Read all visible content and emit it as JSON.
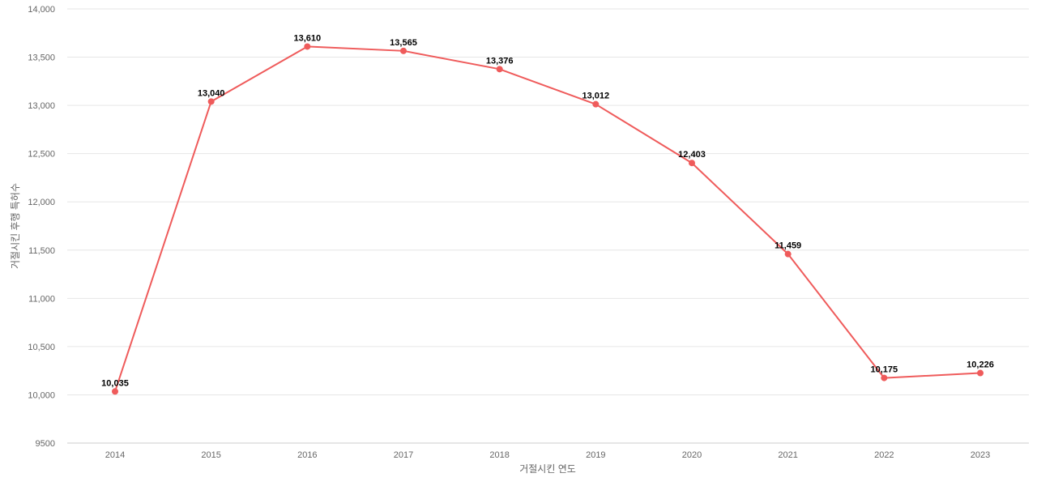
{
  "chart_data": {
    "type": "line",
    "title": "",
    "xlabel": "거절시킨 연도",
    "ylabel": "거절시킨 후행 특허수",
    "categories": [
      "2014",
      "2015",
      "2016",
      "2017",
      "2018",
      "2019",
      "2020",
      "2021",
      "2022",
      "2023"
    ],
    "series": [
      {
        "values": [
          10035,
          13040,
          13610,
          13565,
          13376,
          13012,
          12403,
          11459,
          10175,
          10226
        ],
        "color": "#ef5b5b"
      }
    ],
    "data_labels": [
      "10,035",
      "13,040",
      "13,610",
      "13,565",
      "13,376",
      "13,012",
      "12,403",
      "11,459",
      "10,175",
      "10,226"
    ],
    "ylim": [
      9500,
      14000
    ],
    "y_ticks": [
      9500,
      10000,
      10500,
      11000,
      11500,
      12000,
      12500,
      13000,
      13500,
      14000
    ],
    "y_tick_labels": [
      "9500",
      "10,000",
      "10,500",
      "11,000",
      "11,500",
      "12,000",
      "12,500",
      "13,000",
      "13,500",
      "14,000"
    ],
    "grid": true,
    "legend": "none"
  }
}
